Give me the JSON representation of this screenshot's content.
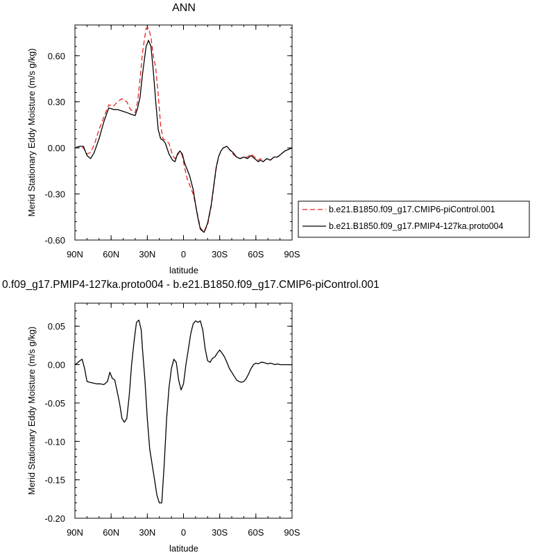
{
  "chart_data": [
    {
      "type": "line",
      "title": "ANN",
      "xlabel": "latitude",
      "ylabel": "Merid Stationary Eddy Moisture (m/s g/kg)",
      "xlim": [
        90,
        -90
      ],
      "ylim": [
        -0.6,
        0.8
      ],
      "x_tick_values": [
        90,
        60,
        30,
        0,
        -30,
        -60,
        -90
      ],
      "x_tick_labels": [
        "90N",
        "60N",
        "30N",
        "0",
        "30S",
        "60S",
        "90S"
      ],
      "y_tick_values": [
        0.6,
        0.3,
        0.0,
        -0.3,
        -0.6
      ],
      "y_tick_labels": [
        "0.60",
        "0.30",
        "0.00",
        "-0.30",
        "-0.60"
      ],
      "legend_position": "right",
      "series": [
        {
          "name": "b.e21.B1850.f09_g17.CMIP6-piControl.001",
          "color": "#e8211f",
          "dash": "dashed",
          "x": [
            90,
            86,
            83,
            80,
            77,
            74,
            70,
            66,
            62,
            58,
            55,
            51,
            47,
            44,
            40,
            38,
            36,
            34,
            31,
            29,
            27,
            25,
            23,
            21,
            19,
            17,
            15,
            12,
            9,
            7,
            5,
            3,
            1,
            -1,
            -3,
            -5,
            -8,
            -10,
            -12,
            -14,
            -17,
            -20,
            -23,
            -25,
            -27,
            -29,
            -31,
            -33,
            -36,
            -38,
            -41,
            -44,
            -47,
            -50,
            -53,
            -56,
            -59,
            -62,
            -64,
            -66,
            -69,
            -72,
            -75,
            -78,
            -81,
            -84,
            -87,
            -90
          ],
          "y": [
            0.0,
            0.01,
            0.0,
            -0.04,
            -0.03,
            0.02,
            0.12,
            0.2,
            0.28,
            0.27,
            0.3,
            0.32,
            0.3,
            0.25,
            0.23,
            0.3,
            0.45,
            0.62,
            0.78,
            0.78,
            0.72,
            0.6,
            0.52,
            0.35,
            0.15,
            0.06,
            0.05,
            0.03,
            -0.05,
            -0.07,
            -0.05,
            -0.02,
            -0.05,
            -0.13,
            -0.2,
            -0.24,
            -0.3,
            -0.37,
            -0.45,
            -0.52,
            -0.55,
            -0.5,
            -0.38,
            -0.26,
            -0.14,
            -0.06,
            -0.02,
            0.0,
            0.01,
            -0.01,
            -0.04,
            -0.06,
            -0.07,
            -0.06,
            -0.06,
            -0.04,
            -0.06,
            -0.08,
            -0.07,
            -0.09,
            -0.07,
            -0.08,
            -0.06,
            -0.06,
            -0.04,
            -0.02,
            -0.01,
            0.0
          ]
        },
        {
          "name": "b.e21.B1850.f09_g17.PMIP4-127ka.proto004",
          "color": "#000000",
          "dash": "solid",
          "x": [
            90,
            86,
            83,
            80,
            77,
            74,
            70,
            66,
            62,
            58,
            55,
            51,
            47,
            44,
            40,
            38,
            36,
            34,
            31,
            29,
            27,
            25,
            23,
            21,
            19,
            17,
            15,
            12,
            9,
            7,
            5,
            3,
            1,
            -1,
            -3,
            -5,
            -8,
            -10,
            -12,
            -14,
            -17,
            -20,
            -23,
            -25,
            -27,
            -29,
            -31,
            -33,
            -36,
            -38,
            -41,
            -44,
            -47,
            -50,
            -53,
            -56,
            -59,
            -62,
            -64,
            -66,
            -69,
            -72,
            -75,
            -78,
            -81,
            -84,
            -87,
            -90
          ],
          "y": [
            0.0,
            0.01,
            0.01,
            -0.05,
            -0.07,
            -0.03,
            0.06,
            0.17,
            0.26,
            0.25,
            0.25,
            0.24,
            0.23,
            0.22,
            0.21,
            0.26,
            0.33,
            0.48,
            0.66,
            0.7,
            0.66,
            0.5,
            0.3,
            0.12,
            0.06,
            0.05,
            0.03,
            -0.04,
            -0.08,
            -0.09,
            -0.04,
            -0.02,
            -0.04,
            -0.1,
            -0.14,
            -0.18,
            -0.27,
            -0.37,
            -0.46,
            -0.53,
            -0.55,
            -0.49,
            -0.37,
            -0.25,
            -0.13,
            -0.06,
            -0.02,
            0.0,
            0.01,
            -0.01,
            -0.03,
            -0.06,
            -0.07,
            -0.06,
            -0.07,
            -0.05,
            -0.07,
            -0.09,
            -0.08,
            -0.09,
            -0.07,
            -0.08,
            -0.06,
            -0.06,
            -0.04,
            -0.02,
            -0.01,
            0.0
          ]
        }
      ]
    },
    {
      "type": "line",
      "title": "0.f09_g17.PMIP4-127ka.proto004 - b.e21.B1850.f09_g17.CMIP6-piControl.001",
      "xlabel": "latitude",
      "ylabel": "Merid Stationary Eddy Moisture (m/s g/kg)",
      "xlim": [
        90,
        -90
      ],
      "ylim": [
        -0.2,
        0.08
      ],
      "x_tick_values": [
        90,
        60,
        30,
        0,
        -30,
        -60,
        -90
      ],
      "x_tick_labels": [
        "90N",
        "60N",
        "30N",
        "0",
        "30S",
        "60S",
        "90S"
      ],
      "y_tick_values": [
        0.05,
        0.0,
        -0.05,
        -0.1,
        -0.15,
        -0.2
      ],
      "y_tick_labels": [
        "0.05",
        "0.00",
        "-0.05",
        "-0.10",
        "-0.15",
        "-0.20"
      ],
      "series": [
        {
          "color": "#000000",
          "dash": "solid",
          "x": [
            90,
            88,
            86,
            84,
            82,
            80,
            78,
            75,
            72,
            69,
            66,
            63,
            61,
            59,
            57,
            55,
            53,
            51,
            49,
            47,
            45,
            43,
            41,
            39,
            37,
            35,
            34,
            32,
            30,
            28,
            26,
            24,
            22,
            20,
            18,
            16,
            14,
            12,
            10,
            8,
            6,
            4,
            2,
            0,
            -2,
            -4,
            -6,
            -8,
            -10,
            -12,
            -14,
            -16,
            -18,
            -20,
            -22,
            -24,
            -26,
            -28,
            -30,
            -32,
            -34,
            -36,
            -38,
            -40,
            -42,
            -44,
            -46,
            -48,
            -50,
            -52,
            -54,
            -56,
            -58,
            -60,
            -62,
            -64,
            -66,
            -68,
            -70,
            -72,
            -74,
            -76,
            -78,
            -80,
            -82,
            -84,
            -86,
            -88,
            -90
          ],
          "y": [
            0.0,
            0.002,
            0.005,
            0.007,
            -0.005,
            -0.022,
            -0.023,
            -0.024,
            -0.025,
            -0.025,
            -0.026,
            -0.022,
            -0.01,
            -0.018,
            -0.02,
            -0.035,
            -0.05,
            -0.07,
            -0.075,
            -0.07,
            -0.04,
            0.0,
            0.03,
            0.055,
            0.058,
            0.045,
            0.02,
            -0.02,
            -0.07,
            -0.11,
            -0.13,
            -0.15,
            -0.17,
            -0.18,
            -0.18,
            -0.13,
            -0.07,
            -0.03,
            -0.005,
            0.007,
            0.003,
            -0.02,
            -0.033,
            -0.025,
            0.0,
            0.02,
            0.04,
            0.053,
            0.057,
            0.055,
            0.057,
            0.045,
            0.02,
            0.005,
            0.003,
            0.008,
            0.01,
            0.015,
            0.019,
            0.015,
            0.01,
            0.003,
            -0.005,
            -0.01,
            -0.015,
            -0.02,
            -0.022,
            -0.023,
            -0.022,
            -0.018,
            -0.012,
            -0.005,
            0.0,
            0.002,
            0.001,
            0.003,
            0.003,
            0.002,
            0.001,
            0.002,
            0.001,
            0.0,
            0.001,
            0.0,
            0.0,
            0.0,
            0.0,
            0.0,
            0.0
          ]
        }
      ]
    }
  ]
}
